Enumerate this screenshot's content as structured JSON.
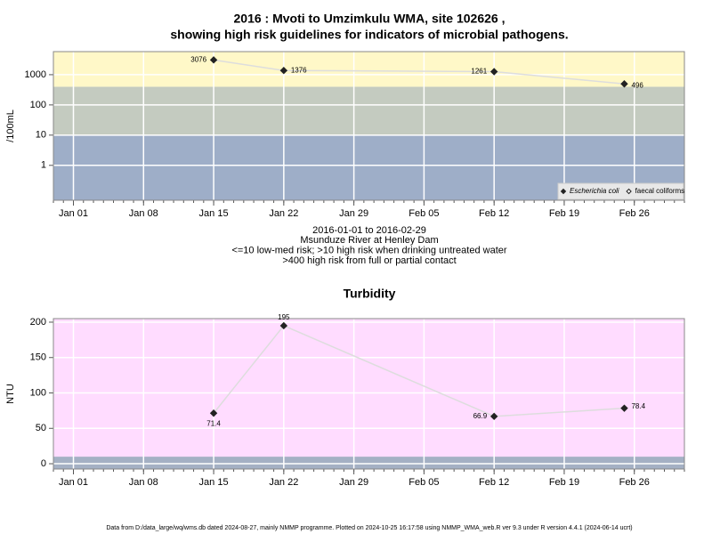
{
  "chart_data": [
    {
      "type": "line",
      "title": "2016 : Mvoti to Umzimkulu WMA, site 102626 ,",
      "subtitle": "showing high risk guidelines for indicators of microbial pathogens.",
      "ylabel": "/100mL",
      "log_y": true,
      "x": [
        "2016-01-15",
        "2016-01-22",
        "2016-02-12",
        "2016-02-25"
      ],
      "series": [
        {
          "name": "Escherichia coli",
          "color": "#222222",
          "marker": "filled",
          "values": [
            3076,
            1376,
            1261,
            496
          ]
        },
        {
          "name": "faecal coliforms",
          "color": "#222222",
          "marker": "open",
          "values": [
            null,
            null,
            null,
            null
          ]
        }
      ],
      "xlim": [
        "2015-12-30",
        "2016-03-02"
      ],
      "xticks": [
        {
          "value": "2016-01-01",
          "label": "Jan 01"
        },
        {
          "value": "2016-01-08",
          "label": "Jan 08"
        },
        {
          "value": "2016-01-15",
          "label": "Jan 15"
        },
        {
          "value": "2016-01-22",
          "label": "Jan 22"
        },
        {
          "value": "2016-01-29",
          "label": "Jan 29"
        },
        {
          "value": "2016-02-05",
          "label": "Feb 05"
        },
        {
          "value": "2016-02-12",
          "label": "Feb 12"
        },
        {
          "value": "2016-02-19",
          "label": "Feb 19"
        },
        {
          "value": "2016-02-26",
          "label": "Feb 26"
        }
      ],
      "ylim": [
        0.07,
        5800
      ],
      "yticks": [
        1,
        10,
        100,
        1000
      ],
      "grid": true,
      "legend": "lower right",
      "thresholds": [
        10,
        400
      ],
      "band_colors": [
        "#9eaec8",
        "#c4cbc0",
        "#fff8c8"
      ],
      "captions": [
        "2016-01-01 to 2016-02-29",
        "Msunduze River at Henley Dam",
        "<=10 low-med risk; >10 high risk when drinking untreated water",
        ">400 high risk from full or partial contact"
      ]
    },
    {
      "type": "line",
      "title": "Turbidity",
      "ylabel": "NTU",
      "log_y": false,
      "x": [
        "2016-01-15",
        "2016-01-22",
        "2016-02-12",
        "2016-02-25"
      ],
      "series": [
        {
          "name": "Turbidity",
          "color": "#222222",
          "marker": "filled",
          "values": [
            71.4,
            195,
            66.9,
            78.4
          ]
        }
      ],
      "xlim": [
        "2015-12-30",
        "2016-03-02"
      ],
      "xticks": [
        {
          "value": "2016-01-01",
          "label": "Jan 01"
        },
        {
          "value": "2016-01-08",
          "label": "Jan 08"
        },
        {
          "value": "2016-01-15",
          "label": "Jan 15"
        },
        {
          "value": "2016-01-22",
          "label": "Jan 22"
        },
        {
          "value": "2016-01-29",
          "label": "Jan 29"
        },
        {
          "value": "2016-02-05",
          "label": "Feb 05"
        },
        {
          "value": "2016-02-12",
          "label": "Feb 12"
        },
        {
          "value": "2016-02-19",
          "label": "Feb 19"
        },
        {
          "value": "2016-02-26",
          "label": "Feb 26"
        }
      ],
      "ylim": [
        -7.5,
        205
      ],
      "yticks": [
        0,
        50,
        100,
        150,
        200
      ],
      "grid": true,
      "thresholds": [
        10
      ],
      "band_colors": [
        "#a4b0c4",
        "#ffdcff"
      ]
    }
  ],
  "footer": "Data from D:/data_large/wq/wms.db dated 2024-08-27, mainly NMMP programme. Plotted on 2024-10-25 16:17:58 using NMMP_WMA_web.R ver 9.3 under R version 4.4.1 (2024-06-14 ucrt)"
}
